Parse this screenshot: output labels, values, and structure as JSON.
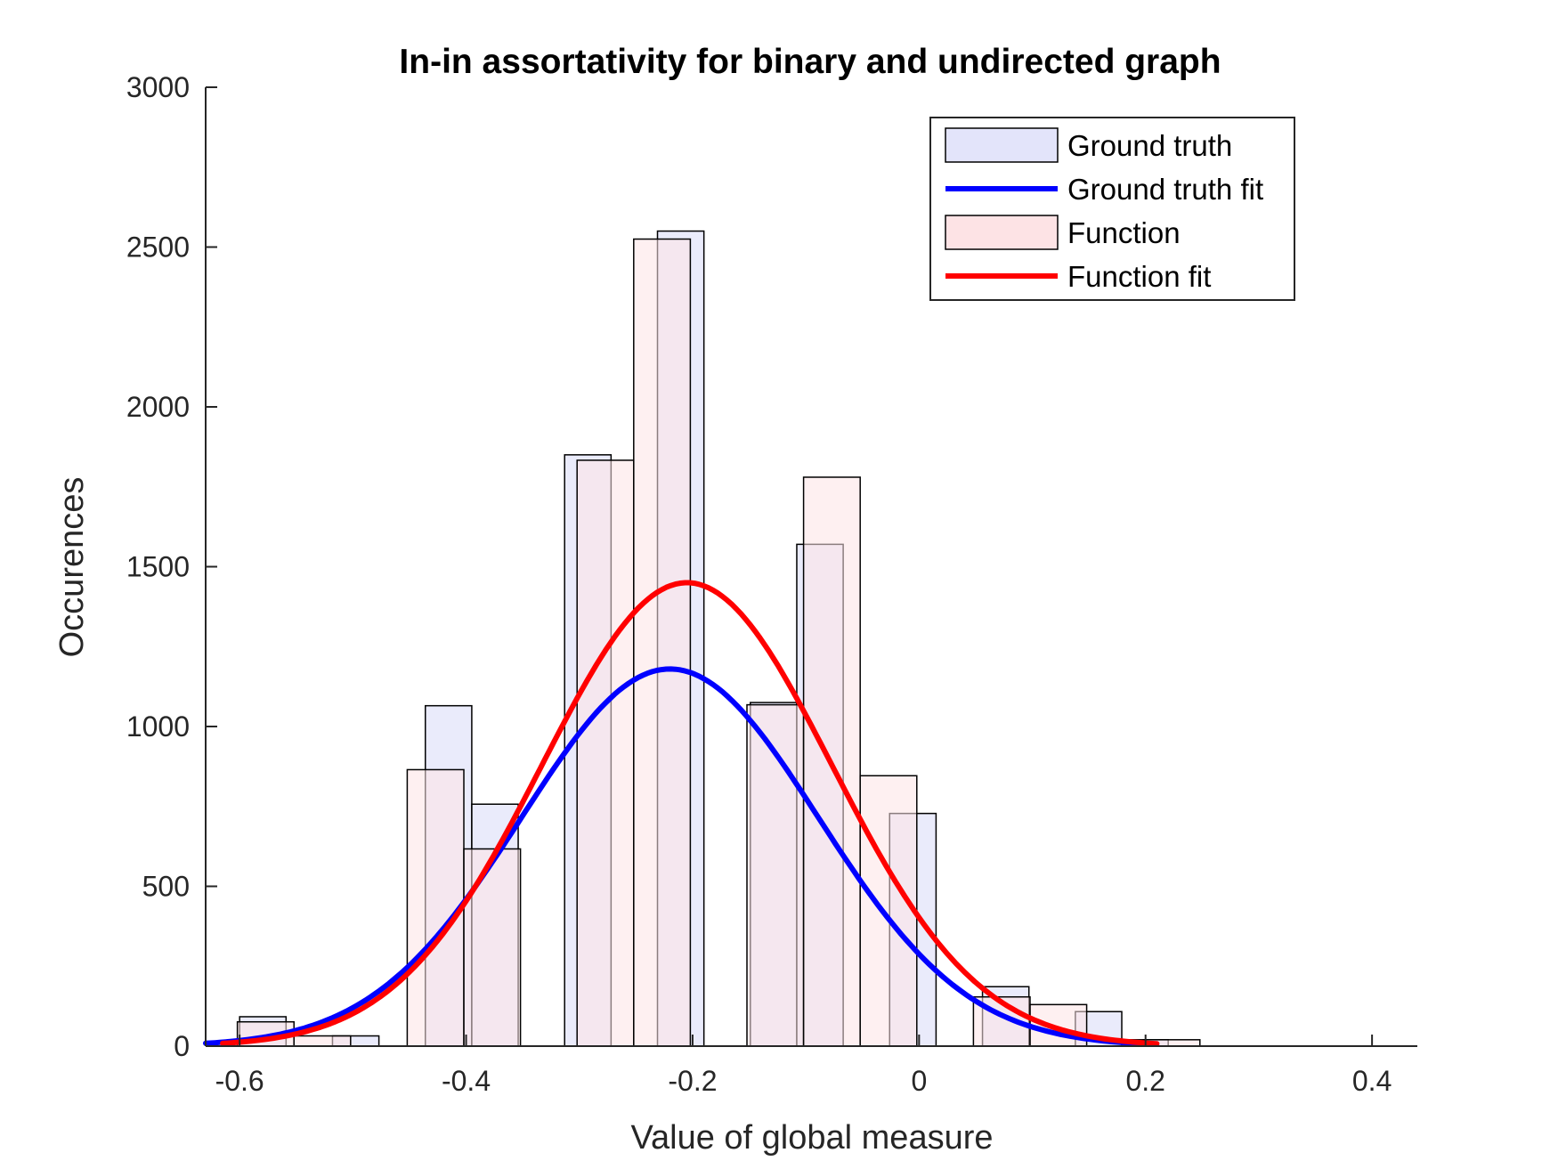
{
  "chart_data": {
    "type": "bar",
    "title": "In-in assortativity for binary and undirected graph",
    "xlabel": "Value of global measure",
    "ylabel": "Occurences",
    "xlim": [
      -0.63,
      0.44
    ],
    "ylim": [
      0,
      3000
    ],
    "xticks": [
      -0.6,
      -0.4,
      -0.2,
      0,
      0.2,
      0.4
    ],
    "xtick_labels": [
      "-0.6",
      "-0.4",
      "-0.2",
      "0",
      "0.2",
      "0.4"
    ],
    "yticks": [
      0,
      500,
      1000,
      1500,
      2000,
      2500,
      3000
    ],
    "ytick_labels": [
      "0",
      "500",
      "1000",
      "1500",
      "2000",
      "2500",
      "3000"
    ],
    "grid": false,
    "legend_position": "top-right",
    "series": [
      {
        "name": "Ground truth",
        "kind": "histogram",
        "color": "#e3e4fa",
        "edge": "#000000",
        "bins": [
          {
            "x0": -0.6,
            "x1": -0.559,
            "count": 92
          },
          {
            "x0": -0.518,
            "x1": -0.477,
            "count": 32
          },
          {
            "x0": -0.436,
            "x1": -0.395,
            "count": 1065
          },
          {
            "x0": -0.395,
            "x1": -0.354,
            "count": 757
          },
          {
            "x0": -0.313,
            "x1": -0.272,
            "count": 1850
          },
          {
            "x0": -0.231,
            "x1": -0.19,
            "count": 2550
          },
          {
            "x0": -0.149,
            "x1": -0.108,
            "count": 1075
          },
          {
            "x0": -0.108,
            "x1": -0.067,
            "count": 1570
          },
          {
            "x0": -0.026,
            "x1": 0.015,
            "count": 728
          },
          {
            "x0": 0.056,
            "x1": 0.097,
            "count": 186
          },
          {
            "x0": 0.138,
            "x1": 0.179,
            "count": 108
          },
          {
            "x0": 0.179,
            "x1": 0.22,
            "count": 20
          }
        ]
      },
      {
        "name": "Function",
        "kind": "histogram",
        "color": "#fde3e5",
        "edge": "#000000",
        "bins": [
          {
            "x0": -0.602,
            "x1": -0.552,
            "count": 76
          },
          {
            "x0": -0.552,
            "x1": -0.502,
            "count": 32
          },
          {
            "x0": -0.452,
            "x1": -0.402,
            "count": 865
          },
          {
            "x0": -0.402,
            "x1": -0.352,
            "count": 617
          },
          {
            "x0": -0.302,
            "x1": -0.252,
            "count": 1833
          },
          {
            "x0": -0.252,
            "x1": -0.202,
            "count": 2525
          },
          {
            "x0": -0.152,
            "x1": -0.102,
            "count": 1068
          },
          {
            "x0": -0.102,
            "x1": -0.052,
            "count": 1780
          },
          {
            "x0": -0.052,
            "x1": -0.002,
            "count": 846
          },
          {
            "x0": 0.048,
            "x1": 0.098,
            "count": 154
          },
          {
            "x0": 0.098,
            "x1": 0.148,
            "count": 130
          },
          {
            "x0": 0.198,
            "x1": 0.248,
            "count": 20
          }
        ]
      },
      {
        "name": "Ground truth fit",
        "kind": "line",
        "color": "#0000ff",
        "fit": {
          "peak": 1180,
          "mean": -0.22,
          "sd": 0.131
        },
        "x_range": [
          -0.63,
          0.2
        ]
      },
      {
        "name": "Function fit",
        "kind": "line",
        "color": "#ff0000",
        "fit": {
          "peak": 1450,
          "mean": -0.205,
          "sd": 0.128
        },
        "x_range": [
          -0.615,
          0.21
        ]
      }
    ],
    "legend": [
      {
        "label": "Ground truth",
        "kind": "patch",
        "color": "#e3e4fa"
      },
      {
        "label": "Ground truth fit",
        "kind": "line",
        "color": "#0000ff"
      },
      {
        "label": "Function",
        "kind": "patch",
        "color": "#fde3e5"
      },
      {
        "label": "Function fit",
        "kind": "line",
        "color": "#ff0000"
      }
    ]
  }
}
